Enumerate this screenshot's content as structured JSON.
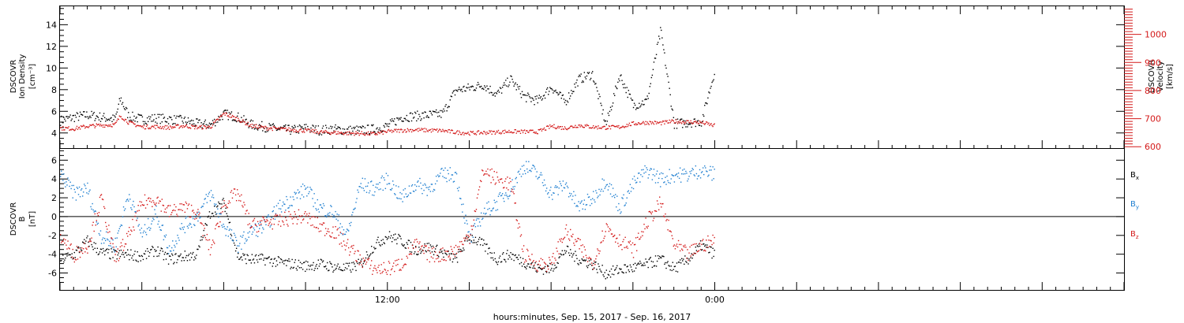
{
  "chart_data": [
    {
      "type": "scatter",
      "panel": "plasma",
      "ylabel_left": [
        "DSCOVR",
        "Ion Density",
        "[cm⁻³]"
      ],
      "ylabel_right": [
        "DSCOVR",
        "Velocity",
        "[km/s]"
      ],
      "ylim_left": [
        2.6,
        15.7
      ],
      "ylim_right": [
        595,
        1100
      ],
      "yticks_left": [
        4,
        6,
        8,
        10,
        12,
        14
      ],
      "yticks_right": [
        600,
        700,
        800,
        900,
        1000
      ],
      "x_hours": [
        0,
        0.5,
        1,
        1.5,
        2,
        2.2,
        2.5,
        3,
        3.5,
        4,
        4.5,
        5,
        5.5,
        6,
        6.5,
        7,
        7.5,
        8,
        8.5,
        9,
        9.5,
        10,
        10.5,
        11,
        11.5,
        12,
        12.5,
        13,
        13.5,
        14,
        14.5,
        15,
        15.5,
        16,
        16.5,
        17,
        17.5,
        18,
        18.5,
        19,
        19.5,
        20,
        20.5,
        21,
        21.5,
        22,
        22.5,
        23,
        23.5,
        24
      ],
      "series": [
        {
          "name": "Ion Density",
          "color": "#000000",
          "axis": "left",
          "values": [
            5.2,
            5.5,
            5.7,
            5.5,
            5.3,
            7.2,
            5.6,
            5.3,
            5.4,
            5.3,
            5.2,
            4.9,
            4.8,
            5.8,
            5.5,
            4.8,
            4.6,
            4.4,
            4.3,
            4.5,
            4.3,
            4.4,
            4.3,
            4.3,
            4.4,
            4.7,
            5.5,
            5.6,
            5.7,
            5.8,
            8.0,
            8.2,
            8.5,
            7.6,
            9.0,
            7.4,
            7.0,
            8.3,
            6.9,
            9.0,
            9.5,
            4.8,
            9.4,
            6.6,
            7.0,
            13.5,
            4.9,
            5.0,
            5.1,
            10.0
          ]
        },
        {
          "name": "Velocity",
          "color": "#d41a1a",
          "axis": "right",
          "values": [
            668,
            666,
            675,
            678,
            680,
            712,
            688,
            672,
            673,
            670,
            676,
            671,
            672,
            720,
            700,
            676,
            669,
            665,
            662,
            659,
            654,
            652,
            650,
            649,
            647,
            656,
            660,
            662,
            660,
            659,
            653,
            650,
            652,
            654,
            656,
            655,
            655,
            675,
            668,
            678,
            672,
            670,
            672,
            684,
            688,
            686,
            692,
            690,
            688,
            676
          ]
        }
      ]
    },
    {
      "type": "scatter",
      "panel": "magnetic field",
      "ylabel": [
        "DSCOVR",
        "B",
        "[nT]"
      ],
      "ylim": [
        -7.8,
        7.2
      ],
      "yticks": [
        -6,
        -4,
        -2,
        0,
        2,
        4,
        6
      ],
      "x_hours": [
        0,
        0.5,
        1,
        1.5,
        2,
        2.5,
        3,
        3.5,
        4,
        4.5,
        5,
        5.5,
        6,
        6.5,
        7,
        7.5,
        8,
        8.5,
        9,
        9.5,
        10,
        10.5,
        11,
        11.5,
        12,
        12.5,
        13,
        13.5,
        14,
        14.5,
        15,
        15.5,
        16,
        16.5,
        17,
        17.5,
        18,
        18.5,
        19,
        19.5,
        20,
        20.5,
        21,
        21.5,
        22,
        22.5,
        23,
        23.5,
        24
      ],
      "series": [
        {
          "name": "Bx",
          "color": "#000000",
          "values": [
            -4.5,
            -4.0,
            -2.5,
            -3.8,
            -4.0,
            -4.0,
            -4.2,
            -3.5,
            -4.5,
            -4.2,
            -4.0,
            0.5,
            1.5,
            -4.2,
            -4.5,
            -4.5,
            -4.8,
            -5.0,
            -5.2,
            -5.0,
            -5.3,
            -5.5,
            -5.0,
            -3.0,
            -2.0,
            -2.5,
            -3.5,
            -3.2,
            -3.8,
            -4.5,
            -2.0,
            -3.0,
            -4.5,
            -4.0,
            -4.8,
            -5.5,
            -5.5,
            -3.5,
            -4.5,
            -5.0,
            -6.0,
            -5.6,
            -5.4,
            -5.0,
            -4.5,
            -5.5,
            -4.5,
            -3.0,
            -4.0
          ]
        },
        {
          "name": "By",
          "color": "#1f7fd0",
          "values": [
            4.5,
            2.5,
            3.0,
            -2.0,
            -3.0,
            2.5,
            -2.0,
            0.5,
            -3.5,
            -1.0,
            0.0,
            2.5,
            -1.0,
            -3.0,
            -1.5,
            -1.0,
            1.0,
            2.0,
            3.0,
            1.0,
            0.5,
            -2.0,
            3.5,
            3.0,
            4.0,
            2.0,
            3.5,
            3.0,
            4.5,
            4.5,
            -2.5,
            0.5,
            1.5,
            3.0,
            5.5,
            4.5,
            2.5,
            3.5,
            1.0,
            2.0,
            4.0,
            1.0,
            3.5,
            5.0,
            4.0,
            4.5,
            4.5,
            5.0,
            4.5
          ]
        },
        {
          "name": "Bz",
          "color": "#d41a1a",
          "values": [
            -2.0,
            -4.0,
            -3.0,
            2.0,
            -4.5,
            -2.0,
            1.5,
            2.0,
            0.5,
            1.0,
            0.5,
            -3.5,
            1.5,
            2.5,
            -1.0,
            -0.5,
            -0.5,
            0.0,
            0.0,
            -1.0,
            -1.5,
            -3.0,
            -4.5,
            -5.5,
            -5.5,
            -5.0,
            -3.0,
            -4.0,
            -4.0,
            -3.5,
            -2.0,
            5.0,
            4.0,
            3.5,
            -4.0,
            -5.0,
            -5.0,
            -1.5,
            -3.0,
            -5.0,
            -1.0,
            -2.5,
            -3.5,
            -0.5,
            1.5,
            -3.0,
            -4.0,
            -3.0,
            -2.5
          ]
        }
      ]
    }
  ],
  "legend": [
    {
      "text": "B",
      "sub": "x",
      "color": "#000000"
    },
    {
      "text": "B",
      "sub": "y",
      "color": "#1f7fd0"
    },
    {
      "text": "B",
      "sub": "z",
      "color": "#d41a1a"
    }
  ],
  "xaxis": {
    "labeled_ticks": [
      {
        "hour": 12,
        "label": "12:00"
      },
      {
        "hour": 24,
        "label": "0:00"
      }
    ],
    "xlabel": "hours:minutes, Sep. 15, 2017 - Sep. 16, 2017",
    "x_range_hours": [
      0,
      39
    ]
  }
}
